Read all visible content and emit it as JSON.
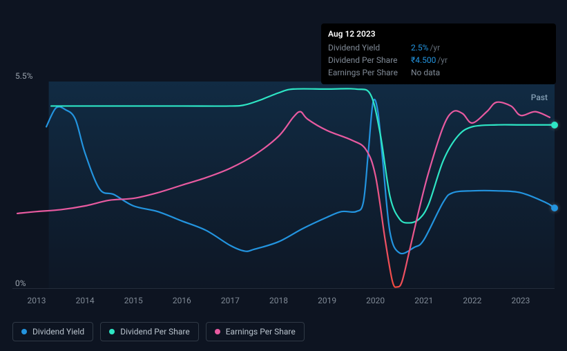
{
  "tooltip": {
    "date": "Aug 12 2023",
    "rows": [
      {
        "label": "Dividend Yield",
        "value": "2.5%",
        "unit": "/yr",
        "valueClass": ""
      },
      {
        "label": "Dividend Per Share",
        "value": "₹4.500",
        "unit": "/yr",
        "valueClass": ""
      },
      {
        "label": "Earnings Per Share",
        "value": "No data",
        "unit": "",
        "valueClass": "gray"
      }
    ]
  },
  "chart": {
    "type": "line",
    "background_color": "#0d1421",
    "plot_area_fill": "rgba(35,148,223,0.08)",
    "plot_area_x_start": 0.067,
    "ylim": [
      0,
      5.5
    ],
    "y_ticks": [
      {
        "value": 5.5,
        "label": "5.5%"
      },
      {
        "value": 0,
        "label": "0%"
      }
    ],
    "x_range": [
      2012.5,
      2023.7
    ],
    "x_ticks": [
      2013,
      2014,
      2015,
      2016,
      2017,
      2018,
      2019,
      2020,
      2021,
      2022,
      2023
    ],
    "past_label": "Past",
    "series": [
      {
        "name": "Dividend Yield",
        "color": "#2394df",
        "stroke_width": 2.2,
        "end_dot": true,
        "points": [
          [
            2013.2,
            4.3
          ],
          [
            2013.4,
            4.8
          ],
          [
            2013.6,
            4.75
          ],
          [
            2013.8,
            4.5
          ],
          [
            2014.0,
            3.6
          ],
          [
            2014.3,
            2.65
          ],
          [
            2014.6,
            2.5
          ],
          [
            2015.0,
            2.2
          ],
          [
            2015.5,
            2.05
          ],
          [
            2016.0,
            1.8
          ],
          [
            2016.5,
            1.55
          ],
          [
            2017.0,
            1.15
          ],
          [
            2017.3,
            1.0
          ],
          [
            2017.5,
            1.05
          ],
          [
            2018.0,
            1.25
          ],
          [
            2018.5,
            1.6
          ],
          [
            2019.0,
            1.9
          ],
          [
            2019.3,
            2.05
          ],
          [
            2019.6,
            2.05
          ],
          [
            2019.75,
            2.3
          ],
          [
            2019.85,
            3.6
          ],
          [
            2019.95,
            4.95
          ],
          [
            2020.05,
            4.7
          ],
          [
            2020.15,
            3.4
          ],
          [
            2020.3,
            1.5
          ],
          [
            2020.5,
            0.95
          ],
          [
            2020.8,
            1.1
          ],
          [
            2021.0,
            1.3
          ],
          [
            2021.4,
            2.3
          ],
          [
            2021.6,
            2.55
          ],
          [
            2022.0,
            2.6
          ],
          [
            2022.5,
            2.6
          ],
          [
            2023.0,
            2.55
          ],
          [
            2023.5,
            2.3
          ],
          [
            2023.7,
            2.15
          ]
        ]
      },
      {
        "name": "Dividend Per Share",
        "color": "#2ee6c5",
        "stroke_width": 2.2,
        "end_dot": true,
        "points": [
          [
            2013.3,
            4.85
          ],
          [
            2014.0,
            4.85
          ],
          [
            2015.0,
            4.85
          ],
          [
            2016.0,
            4.85
          ],
          [
            2017.0,
            4.85
          ],
          [
            2017.3,
            4.88
          ],
          [
            2017.6,
            5.0
          ],
          [
            2018.0,
            5.2
          ],
          [
            2018.3,
            5.3
          ],
          [
            2019.0,
            5.3
          ],
          [
            2019.6,
            5.3
          ],
          [
            2019.9,
            5.15
          ],
          [
            2020.1,
            4.1
          ],
          [
            2020.3,
            2.45
          ],
          [
            2020.5,
            1.85
          ],
          [
            2020.7,
            1.75
          ],
          [
            2020.9,
            1.85
          ],
          [
            2021.1,
            2.25
          ],
          [
            2021.4,
            3.4
          ],
          [
            2021.7,
            4.05
          ],
          [
            2022.0,
            4.3
          ],
          [
            2022.5,
            4.35
          ],
          [
            2023.0,
            4.35
          ],
          [
            2023.7,
            4.35
          ]
        ]
      },
      {
        "name": "Earnings Per Share",
        "color": "#e85aa0",
        "gradient_low_color": "#f24b3e",
        "gradient_threshold": 0.5,
        "stroke_width": 2.2,
        "end_dot": false,
        "points": [
          [
            2012.6,
            2.0
          ],
          [
            2013.0,
            2.05
          ],
          [
            2013.5,
            2.1
          ],
          [
            2014.0,
            2.2
          ],
          [
            2014.5,
            2.35
          ],
          [
            2015.0,
            2.4
          ],
          [
            2015.5,
            2.55
          ],
          [
            2016.0,
            2.75
          ],
          [
            2016.5,
            2.95
          ],
          [
            2017.0,
            3.2
          ],
          [
            2017.5,
            3.55
          ],
          [
            2018.0,
            4.05
          ],
          [
            2018.3,
            4.55
          ],
          [
            2018.45,
            4.7
          ],
          [
            2018.6,
            4.5
          ],
          [
            2019.0,
            4.2
          ],
          [
            2019.5,
            3.95
          ],
          [
            2019.8,
            3.7
          ],
          [
            2020.0,
            3.0
          ],
          [
            2020.2,
            1.3
          ],
          [
            2020.35,
            0.2
          ],
          [
            2020.45,
            0.05
          ],
          [
            2020.55,
            0.2
          ],
          [
            2020.7,
            1.0
          ],
          [
            2020.9,
            2.1
          ],
          [
            2021.1,
            3.1
          ],
          [
            2021.4,
            4.3
          ],
          [
            2021.6,
            4.7
          ],
          [
            2021.8,
            4.65
          ],
          [
            2022.0,
            4.4
          ],
          [
            2022.3,
            4.7
          ],
          [
            2022.5,
            4.95
          ],
          [
            2022.8,
            4.85
          ],
          [
            2023.0,
            4.6
          ],
          [
            2023.3,
            4.7
          ],
          [
            2023.6,
            4.55
          ]
        ]
      }
    ],
    "legend": {
      "items": [
        {
          "label": "Dividend Yield",
          "color": "#2394df"
        },
        {
          "label": "Dividend Per Share",
          "color": "#2ee6c5"
        },
        {
          "label": "Earnings Per Share",
          "color": "#e85aa0"
        }
      ]
    }
  }
}
